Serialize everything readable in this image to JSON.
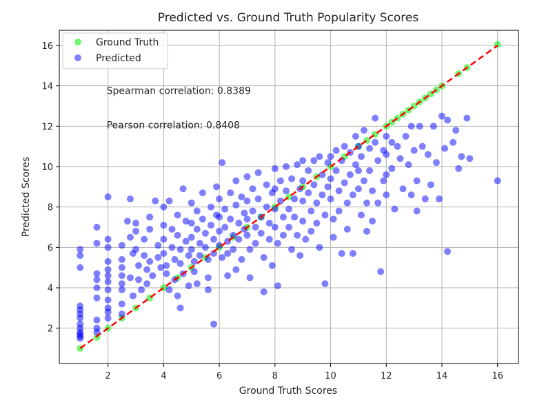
{
  "chart_data": {
    "type": "scatter",
    "title": "Predicted vs. Ground Truth Popularity Scores",
    "xlabel": "Ground Truth Scores",
    "ylabel": "Predicted Scores",
    "xlim": [
      0.25,
      16.75
    ],
    "ylim": [
      0.25,
      16.75
    ],
    "xticks": [
      2,
      4,
      6,
      8,
      10,
      12,
      14,
      16
    ],
    "yticks": [
      2,
      4,
      6,
      8,
      10,
      12,
      14,
      16
    ],
    "grid": true,
    "legend_position": "top-left",
    "annotations": [
      {
        "text": "Spearman correlation: 0.8389",
        "x": 1.95,
        "y": 13.6
      },
      {
        "text": "Pearson correlation: 0.8408",
        "x": 1.95,
        "y": 11.9
      }
    ],
    "reference_line": {
      "x": [
        1,
        16
      ],
      "y": [
        1,
        16
      ],
      "color": "#ff0000",
      "style": "dashed"
    },
    "series": [
      {
        "name": "Ground Truth",
        "color": "#00ee00",
        "points": [
          [
            1,
            1
          ],
          [
            1.6,
            1.55
          ],
          [
            2,
            2
          ],
          [
            2.5,
            2.5
          ],
          [
            3,
            3
          ],
          [
            3.5,
            3.5
          ],
          [
            4,
            4
          ],
          [
            4.5,
            4.5
          ],
          [
            5,
            5
          ],
          [
            5.5,
            5.5
          ],
          [
            6,
            6
          ],
          [
            6.5,
            6.5
          ],
          [
            7,
            7
          ],
          [
            7.5,
            7.5
          ],
          [
            8,
            8
          ],
          [
            8.5,
            8.5
          ],
          [
            9,
            9
          ],
          [
            9.5,
            9.5
          ],
          [
            10,
            10
          ],
          [
            10.5,
            10.5
          ],
          [
            11,
            11
          ],
          [
            11.3,
            11.3
          ],
          [
            11.6,
            11.6
          ],
          [
            12,
            12
          ],
          [
            12.2,
            12.2
          ],
          [
            12.4,
            12.4
          ],
          [
            12.6,
            12.6
          ],
          [
            12.8,
            12.8
          ],
          [
            13,
            13
          ],
          [
            13.2,
            13.2
          ],
          [
            13.4,
            13.4
          ],
          [
            13.6,
            13.6
          ],
          [
            13.8,
            13.8
          ],
          [
            14,
            14
          ],
          [
            14.6,
            14.6
          ],
          [
            14.9,
            14.9
          ],
          [
            16,
            16.05
          ]
        ]
      },
      {
        "name": "Predicted",
        "color": "#0000ff",
        "points": [
          [
            1,
            5.9
          ],
          [
            1,
            5.6
          ],
          [
            1,
            5.0
          ],
          [
            1,
            3.1
          ],
          [
            1,
            2.9
          ],
          [
            1,
            2.7
          ],
          [
            1,
            2.5
          ],
          [
            1,
            2.2
          ],
          [
            1,
            2.0
          ],
          [
            1,
            1.8
          ],
          [
            1,
            1.7
          ],
          [
            1,
            1.6
          ],
          [
            1,
            1.5
          ],
          [
            1.6,
            7.0
          ],
          [
            1.6,
            6.2
          ],
          [
            1.6,
            4.7
          ],
          [
            1.6,
            4.4
          ],
          [
            1.6,
            4.0
          ],
          [
            1.6,
            3.5
          ],
          [
            1.6,
            2.4
          ],
          [
            1.6,
            2.0
          ],
          [
            1.6,
            1.8
          ],
          [
            2,
            8.5
          ],
          [
            2,
            6.4
          ],
          [
            2,
            6.0
          ],
          [
            2,
            5.3
          ],
          [
            2,
            4.9
          ],
          [
            2,
            4.6
          ],
          [
            2,
            4.3
          ],
          [
            2,
            3.9
          ],
          [
            2,
            3.4
          ],
          [
            2,
            3.0
          ],
          [
            2,
            2.8
          ],
          [
            2,
            2.5
          ],
          [
            2.5,
            6.1
          ],
          [
            2.5,
            5.4
          ],
          [
            2.5,
            5.0
          ],
          [
            2.5,
            4.6
          ],
          [
            2.5,
            4.2
          ],
          [
            2.5,
            3.9
          ],
          [
            2.5,
            3.2
          ],
          [
            2.5,
            2.7
          ],
          [
            2.8,
            8.4
          ],
          [
            2.7,
            7.3
          ],
          [
            2.8,
            6.5
          ],
          [
            2.9,
            5.7
          ],
          [
            2.8,
            4.5
          ],
          [
            2.9,
            3.6
          ],
          [
            3,
            7.2
          ],
          [
            3,
            6.8
          ],
          [
            3,
            5.9
          ],
          [
            3.1,
            5.1
          ],
          [
            3.1,
            4.4
          ],
          [
            3.2,
            3.9
          ],
          [
            3.3,
            6.4
          ],
          [
            3.3,
            5.6
          ],
          [
            3.4,
            4.9
          ],
          [
            3.4,
            4.2
          ],
          [
            3.5,
            7.5
          ],
          [
            3.5,
            6.9
          ],
          [
            3.5,
            5.3
          ],
          [
            3.6,
            4.6
          ],
          [
            3.7,
            8.3
          ],
          [
            3.8,
            6.1
          ],
          [
            3.8,
            5.5
          ],
          [
            3.9,
            5.0
          ],
          [
            4,
            8.0
          ],
          [
            4,
            7.1
          ],
          [
            4,
            6.4
          ],
          [
            4,
            5.7
          ],
          [
            4.1,
            5.1
          ],
          [
            4.1,
            4.7
          ],
          [
            4.2,
            3.9
          ],
          [
            4.2,
            8.3
          ],
          [
            4.3,
            6.9
          ],
          [
            4.3,
            6.0
          ],
          [
            4.4,
            5.4
          ],
          [
            4.4,
            4.4
          ],
          [
            4.5,
            7.6
          ],
          [
            4.5,
            6.6
          ],
          [
            4.6,
            5.9
          ],
          [
            4.6,
            5.2
          ],
          [
            4.7,
            4.7
          ],
          [
            4.8,
            7.3
          ],
          [
            4.8,
            6.3
          ],
          [
            4.9,
            5.6
          ],
          [
            4.9,
            4.1
          ],
          [
            4.7,
            8.9
          ],
          [
            4.5,
            3.6
          ],
          [
            4.6,
            3.0
          ],
          [
            5,
            8.2
          ],
          [
            5,
            7.2
          ],
          [
            5,
            6.5
          ],
          [
            5,
            5.9
          ],
          [
            5.1,
            5.3
          ],
          [
            5.1,
            4.8
          ],
          [
            5.2,
            7.8
          ],
          [
            5.2,
            6.9
          ],
          [
            5.3,
            6.2
          ],
          [
            5.3,
            5.6
          ],
          [
            5.4,
            8.7
          ],
          [
            5.4,
            7.4
          ],
          [
            5.5,
            6.7
          ],
          [
            5.5,
            6.0
          ],
          [
            5.6,
            5.4
          ],
          [
            5.6,
            4.5
          ],
          [
            5.7,
            8.0
          ],
          [
            5.7,
            7.1
          ],
          [
            5.8,
            6.4
          ],
          [
            5.8,
            5.7
          ],
          [
            5.8,
            2.2
          ],
          [
            5.9,
            9.0
          ],
          [
            5.9,
            7.6
          ],
          [
            5.2,
            4.2
          ],
          [
            5.6,
            3.9
          ],
          [
            6,
            8.4
          ],
          [
            6,
            7.5
          ],
          [
            6,
            6.8
          ],
          [
            6,
            6.1
          ],
          [
            6.1,
            5.5
          ],
          [
            6.1,
            10.2
          ],
          [
            6.2,
            7.9
          ],
          [
            6.2,
            7.0
          ],
          [
            6.3,
            6.3
          ],
          [
            6.3,
            5.7
          ],
          [
            6.4,
            8.7
          ],
          [
            6.4,
            7.4
          ],
          [
            6.5,
            6.6
          ],
          [
            6.5,
            5.9
          ],
          [
            6.6,
            9.3
          ],
          [
            6.6,
            8.1
          ],
          [
            6.7,
            7.2
          ],
          [
            6.7,
            6.4
          ],
          [
            6.8,
            5.4
          ],
          [
            6.8,
            8.5
          ],
          [
            6.9,
            7.7
          ],
          [
            6.9,
            6.9
          ],
          [
            6.3,
            4.6
          ],
          [
            6.6,
            4.9
          ],
          [
            7,
            9.5
          ],
          [
            7,
            8.3
          ],
          [
            7,
            7.4
          ],
          [
            7,
            6.6
          ],
          [
            7.1,
            5.9
          ],
          [
            7.1,
            4.5
          ],
          [
            7.2,
            8.9
          ],
          [
            7.2,
            7.8
          ],
          [
            7.3,
            7.0
          ],
          [
            7.3,
            6.2
          ],
          [
            7.4,
            9.7
          ],
          [
            7.4,
            8.4
          ],
          [
            7.5,
            7.5
          ],
          [
            7.5,
            6.7
          ],
          [
            7.6,
            5.5
          ],
          [
            7.6,
            3.8
          ],
          [
            7.7,
            9.1
          ],
          [
            7.7,
            8.0
          ],
          [
            7.8,
            7.2
          ],
          [
            7.8,
            6.4
          ],
          [
            7.9,
            8.7
          ],
          [
            7.9,
            5.1
          ],
          [
            8,
            9.9
          ],
          [
            8,
            8.9
          ],
          [
            8,
            7.9
          ],
          [
            8,
            7.0
          ],
          [
            8.1,
            6.2
          ],
          [
            8.1,
            4.1
          ],
          [
            8.2,
            9.3
          ],
          [
            8.2,
            8.3
          ],
          [
            8.3,
            7.5
          ],
          [
            8.3,
            6.6
          ],
          [
            8.4,
            10.0
          ],
          [
            8.4,
            8.8
          ],
          [
            8.5,
            7.9
          ],
          [
            8.5,
            7.0
          ],
          [
            8.6,
            5.9
          ],
          [
            8.6,
            9.4
          ],
          [
            8.7,
            8.4
          ],
          [
            8.7,
            7.5
          ],
          [
            8.8,
            6.6
          ],
          [
            8.8,
            10.1
          ],
          [
            8.9,
            8.9
          ],
          [
            8.9,
            5.6
          ],
          [
            9,
            10.3
          ],
          [
            9,
            9.3
          ],
          [
            9,
            8.3
          ],
          [
            9,
            7.3
          ],
          [
            9.1,
            6.4
          ],
          [
            9.2,
            9.8
          ],
          [
            9.2,
            8.7
          ],
          [
            9.3,
            7.8
          ],
          [
            9.3,
            6.8
          ],
          [
            9.4,
            10.3
          ],
          [
            9.4,
            9.1
          ],
          [
            9.5,
            8.2
          ],
          [
            9.5,
            7.2
          ],
          [
            9.6,
            10.5
          ],
          [
            9.6,
            6.0
          ],
          [
            9.7,
            9.6
          ],
          [
            9.7,
            8.6
          ],
          [
            9.8,
            7.6
          ],
          [
            9.8,
            4.2
          ],
          [
            9.9,
            10.2
          ],
          [
            9.9,
            9.0
          ],
          [
            10,
            10.5
          ],
          [
            10,
            9.4
          ],
          [
            10,
            8.4
          ],
          [
            10.1,
            7.4
          ],
          [
            10.1,
            6.5
          ],
          [
            10.2,
            10.8
          ],
          [
            10.2,
            9.8
          ],
          [
            10.3,
            8.8
          ],
          [
            10.3,
            7.8
          ],
          [
            10.4,
            10.3
          ],
          [
            10.4,
            5.7
          ],
          [
            10.5,
            11.0
          ],
          [
            10.5,
            9.2
          ],
          [
            10.6,
            8.2
          ],
          [
            10.6,
            6.9
          ],
          [
            10.7,
            10.7
          ],
          [
            10.7,
            9.6
          ],
          [
            10.8,
            8.6
          ],
          [
            10.8,
            5.7
          ],
          [
            10.9,
            10.1
          ],
          [
            10.9,
            11.5
          ],
          [
            11,
            11.0
          ],
          [
            11,
            9.8
          ],
          [
            11,
            8.9
          ],
          [
            11.1,
            7.6
          ],
          [
            11.1,
            10.5
          ],
          [
            11.2,
            11.8
          ],
          [
            11.2,
            9.3
          ],
          [
            11.3,
            8.2
          ],
          [
            11.3,
            6.8
          ],
          [
            11.4,
            10.9
          ],
          [
            11.4,
            9.8
          ],
          [
            11.5,
            8.8
          ],
          [
            11.5,
            7.3
          ],
          [
            11.6,
            11.2
          ],
          [
            11.6,
            12.4
          ],
          [
            11.7,
            10.3
          ],
          [
            11.7,
            8.2
          ],
          [
            11.8,
            4.8
          ],
          [
            11.9,
            10.8
          ],
          [
            11.9,
            9.3
          ],
          [
            12,
            11.5
          ],
          [
            12,
            10.6
          ],
          [
            12,
            9.6
          ],
          [
            12,
            8.6
          ],
          [
            12.2,
            11.2
          ],
          [
            12.2,
            9.9
          ],
          [
            12.3,
            7.9
          ],
          [
            12.4,
            11.0
          ],
          [
            12.5,
            10.4
          ],
          [
            12.6,
            8.9
          ],
          [
            12.7,
            11.5
          ],
          [
            12.8,
            10.1
          ],
          [
            12.9,
            8.6
          ],
          [
            12.9,
            12.0
          ],
          [
            13.0,
            10.8
          ],
          [
            13.1,
            9.3
          ],
          [
            13.1,
            7.8
          ],
          [
            13.2,
            12.0
          ],
          [
            13.3,
            11.0
          ],
          [
            13.4,
            8.4
          ],
          [
            13.5,
            10.6
          ],
          [
            13.6,
            9.1
          ],
          [
            13.7,
            12.0
          ],
          [
            13.8,
            10.2
          ],
          [
            13.9,
            8.4
          ],
          [
            14.0,
            12.5
          ],
          [
            14.1,
            10.9
          ],
          [
            14.2,
            12.3
          ],
          [
            14.2,
            5.8
          ],
          [
            14.4,
            11.2
          ],
          [
            14.5,
            11.8
          ],
          [
            14.6,
            9.9
          ],
          [
            14.7,
            10.5
          ],
          [
            14.9,
            12.4
          ],
          [
            15.0,
            10.4
          ],
          [
            16.0,
            9.3
          ]
        ]
      }
    ]
  }
}
